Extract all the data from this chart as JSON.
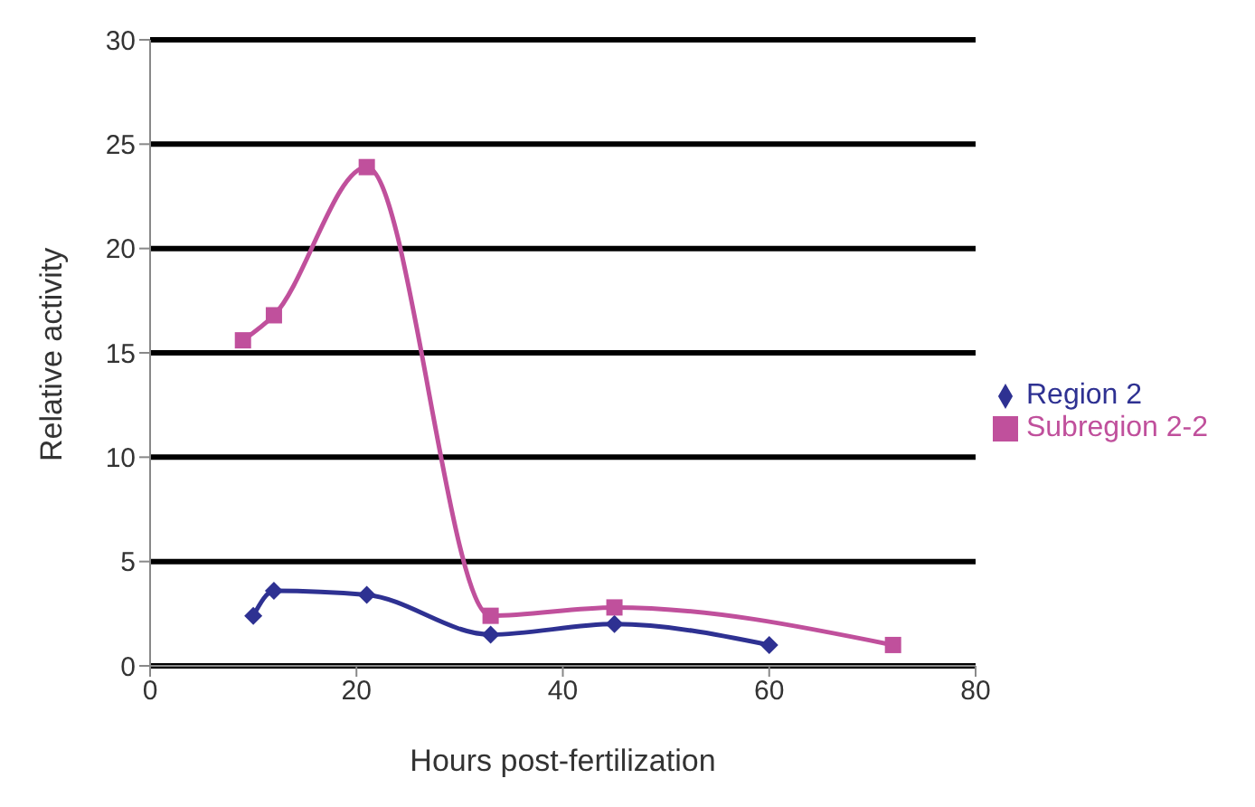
{
  "chart_data": {
    "type": "line",
    "xlabel": "Hours post-fertilization",
    "ylabel": "Relative activity",
    "xlim": [
      0,
      80
    ],
    "xticks": [
      0,
      20,
      40,
      60,
      80
    ],
    "ylim": [
      0,
      30
    ],
    "yticks": [
      0,
      5,
      10,
      15,
      20,
      25,
      30
    ],
    "grid": "y",
    "legend": "right",
    "series": [
      {
        "name": "Region 2",
        "color": "#2e3192",
        "marker": "diamond",
        "x": [
          10,
          12,
          21,
          33,
          45,
          60
        ],
        "values": [
          2.4,
          3.6,
          3.4,
          1.5,
          2.0,
          1.0
        ]
      },
      {
        "name": "Subregion 2-2",
        "color": "#c0509c",
        "marker": "square",
        "x": [
          9,
          12,
          21,
          33,
          45,
          72
        ],
        "values": [
          15.6,
          16.8,
          23.9,
          2.4,
          2.8,
          1.0
        ]
      }
    ]
  }
}
